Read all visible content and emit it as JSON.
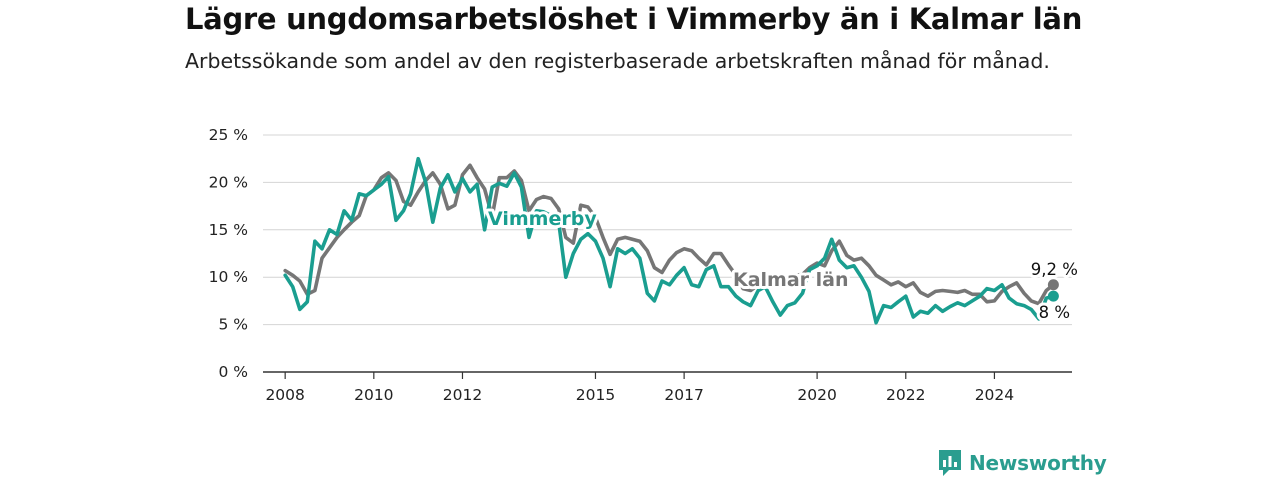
{
  "title": "Lägre ungdomsarbetslöshet i Vimmerby än i Kalmar län",
  "subtitle": "Arbetssökande som andel av den registerbaserade arbetskraften månad för månad.",
  "brand": {
    "name": "Newsworthy",
    "color": "#2a9d8f"
  },
  "chart_data": {
    "type": "line",
    "title": "Lägre ungdomsarbetslöshet i Vimmerby än i Kalmar län",
    "subtitle": "Arbetssökande som andel av den registerbaserade arbetskraften månad för månad.",
    "xlabel": "",
    "ylabel": "",
    "ylim": [
      0,
      25
    ],
    "xlim": [
      2007.5,
      2025.75
    ],
    "y_ticks": [
      0,
      5,
      10,
      15,
      20,
      25
    ],
    "y_tick_labels": [
      "0 %",
      "5 %",
      "10 %",
      "15 %",
      "20 %",
      "25 %"
    ],
    "x_ticks": [
      2008,
      2010,
      2012,
      2015,
      2017,
      2020,
      2022,
      2024
    ],
    "x_tick_labels": [
      "2008",
      "2010",
      "2012",
      "2015",
      "2017",
      "2020",
      "2022",
      "2024"
    ],
    "grid": true,
    "legend": "direct labels on lines",
    "series": [
      {
        "name": "Kalmar län",
        "color": "#767676",
        "end_label": "9,2 %",
        "end_value": 9.2,
        "x": [
          2008,
          2008.17,
          2008.33,
          2008.5,
          2008.67,
          2008.83,
          2009,
          2009.17,
          2009.33,
          2009.5,
          2009.67,
          2009.83,
          2010,
          2010.17,
          2010.33,
          2010.5,
          2010.67,
          2010.83,
          2011,
          2011.17,
          2011.33,
          2011.5,
          2011.67,
          2011.83,
          2012,
          2012.17,
          2012.33,
          2012.5,
          2012.67,
          2012.83,
          2013,
          2013.17,
          2013.33,
          2013.5,
          2013.67,
          2013.83,
          2014,
          2014.17,
          2014.33,
          2014.5,
          2014.67,
          2014.83,
          2015,
          2015.17,
          2015.33,
          2015.5,
          2015.67,
          2015.83,
          2016,
          2016.17,
          2016.33,
          2016.5,
          2016.67,
          2016.83,
          2017,
          2017.17,
          2017.33,
          2017.5,
          2017.67,
          2017.83,
          2018,
          2018.17,
          2018.33,
          2018.5,
          2018.67,
          2018.83,
          2019,
          2019.17,
          2019.33,
          2019.5,
          2019.67,
          2019.83,
          2020,
          2020.17,
          2020.33,
          2020.5,
          2020.67,
          2020.83,
          2021,
          2021.17,
          2021.33,
          2021.5,
          2021.67,
          2021.83,
          2022,
          2022.17,
          2022.33,
          2022.5,
          2022.67,
          2022.83,
          2023,
          2023.17,
          2023.33,
          2023.5,
          2023.67,
          2023.83,
          2024,
          2024.17,
          2024.33,
          2024.5,
          2024.67,
          2024.83,
          2025,
          2025.17,
          2025.33
        ],
        "values": [
          10.7,
          10.2,
          9.6,
          8.2,
          8.6,
          12.0,
          13.1,
          14.2,
          15.0,
          15.8,
          16.5,
          18.6,
          19.2,
          20.5,
          21.0,
          20.2,
          18.0,
          17.6,
          19.0,
          20.2,
          21.0,
          19.8,
          17.2,
          17.6,
          20.8,
          21.8,
          20.5,
          19.3,
          16.4,
          20.5,
          20.5,
          21.2,
          20.2,
          17.0,
          18.2,
          18.5,
          18.3,
          17.2,
          14.2,
          13.6,
          17.6,
          17.4,
          16.3,
          14.2,
          12.4,
          14.0,
          14.2,
          14.0,
          13.8,
          12.8,
          11.0,
          10.5,
          11.8,
          12.6,
          13.0,
          12.8,
          12.0,
          11.3,
          12.5,
          12.5,
          11.3,
          10.2,
          8.8,
          8.6,
          9.2,
          9.4,
          9.8,
          9.6,
          9.5,
          10.2,
          10.3,
          11.0,
          11.5,
          11.2,
          12.8,
          13.8,
          12.3,
          11.8,
          12.0,
          11.2,
          10.2,
          9.7,
          9.2,
          9.5,
          9.0,
          9.4,
          8.4,
          8.0,
          8.5,
          8.6,
          8.5,
          8.4,
          8.6,
          8.2,
          8.2,
          7.4,
          7.5,
          8.5,
          9.0,
          9.4,
          8.3,
          7.5,
          7.2,
          8.6,
          9.2
        ]
      },
      {
        "name": "Vimmerby",
        "color": "#1a9e90",
        "end_label": "8 %",
        "end_value": 8.0,
        "x": [
          2008,
          2008.17,
          2008.33,
          2008.5,
          2008.67,
          2008.83,
          2009,
          2009.17,
          2009.33,
          2009.5,
          2009.67,
          2009.83,
          2010,
          2010.17,
          2010.33,
          2010.5,
          2010.67,
          2010.83,
          2011,
          2011.17,
          2011.33,
          2011.5,
          2011.67,
          2011.83,
          2012,
          2012.17,
          2012.33,
          2012.5,
          2012.67,
          2012.83,
          2013,
          2013.17,
          2013.33,
          2013.5,
          2013.67,
          2013.83,
          2014,
          2014.17,
          2014.33,
          2014.5,
          2014.67,
          2014.83,
          2015,
          2015.17,
          2015.33,
          2015.5,
          2015.67,
          2015.83,
          2016,
          2016.17,
          2016.33,
          2016.5,
          2016.67,
          2016.83,
          2017,
          2017.17,
          2017.33,
          2017.5,
          2017.67,
          2017.83,
          2018,
          2018.17,
          2018.33,
          2018.5,
          2018.67,
          2018.83,
          2019,
          2019.17,
          2019.33,
          2019.5,
          2019.67,
          2019.83,
          2020,
          2020.17,
          2020.33,
          2020.5,
          2020.67,
          2020.83,
          2021,
          2021.17,
          2021.33,
          2021.5,
          2021.67,
          2021.83,
          2022,
          2022.17,
          2022.33,
          2022.5,
          2022.67,
          2022.83,
          2023,
          2023.17,
          2023.33,
          2023.5,
          2023.67,
          2023.83,
          2024,
          2024.17,
          2024.33,
          2024.5,
          2024.67,
          2024.83,
          2025,
          2025.17,
          2025.33
        ],
        "values": [
          10.2,
          9.0,
          6.6,
          7.4,
          13.8,
          13.0,
          15.0,
          14.5,
          17.0,
          16.0,
          18.8,
          18.6,
          19.2,
          19.8,
          20.6,
          16.0,
          17.0,
          18.8,
          22.5,
          20.0,
          15.8,
          19.4,
          20.8,
          19.0,
          20.4,
          19.0,
          19.8,
          15.0,
          19.5,
          19.9,
          19.6,
          21.0,
          19.5,
          14.2,
          17.0,
          16.9,
          16.5,
          15.8,
          10.0,
          12.5,
          14.0,
          14.6,
          13.8,
          12.0,
          9.0,
          13.0,
          12.5,
          13.0,
          12.0,
          8.3,
          7.5,
          9.6,
          9.2,
          10.2,
          11.0,
          9.2,
          9.0,
          10.8,
          11.2,
          9.0,
          9.0,
          8.0,
          7.4,
          7.0,
          8.6,
          9.0,
          7.4,
          6.0,
          7.0,
          7.3,
          8.3,
          10.8,
          11.2,
          12.0,
          14.0,
          11.8,
          11.0,
          11.2,
          10.0,
          8.5,
          5.2,
          7.0,
          6.8,
          7.4,
          8.0,
          5.8,
          6.4,
          6.2,
          7.0,
          6.4,
          6.9,
          7.3,
          7.0,
          7.5,
          8.0,
          8.8,
          8.6,
          9.2,
          7.8,
          7.2,
          7.0,
          6.6,
          5.6,
          7.8,
          8.0
        ]
      }
    ]
  }
}
